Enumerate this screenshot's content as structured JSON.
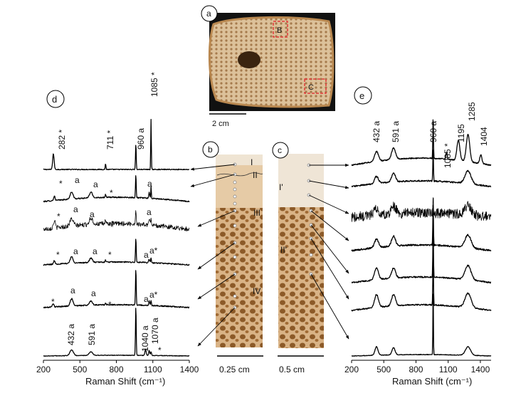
{
  "panels": {
    "a": {
      "label": "a",
      "box_labels": [
        "B",
        "C"
      ],
      "scalebar": "2 cm"
    },
    "b": {
      "label": "b",
      "regions": [
        "I",
        "II",
        "III",
        "IV"
      ],
      "scalebar": "0.25 cm"
    },
    "c": {
      "label": "c",
      "regions": [
        "I'",
        "II'"
      ],
      "scalebar": "0.5 cm"
    },
    "d": {
      "label": "d"
    },
    "e": {
      "label": "e"
    }
  },
  "colors": {
    "photo_box": "#e23b3b",
    "bone_light": "#d8b48a",
    "bone_dark": "#8a5a2b",
    "background_dark": "#111111"
  },
  "chart_data": [
    {
      "type": "line",
      "panel": "d",
      "xlabel": "Raman Shift (cm⁻¹)",
      "xlim": [
        200,
        1400
      ],
      "xticks": [
        200,
        500,
        800,
        1100,
        1400
      ],
      "series": [
        {
          "peaks": [
            282,
            711,
            960,
            1085
          ]
        },
        {
          "peaks": [
            290,
            432,
            591,
            711,
            960,
            1070,
            1085
          ]
        },
        {
          "peaks": [
            290,
            432,
            591,
            711,
            960,
            1070,
            1085
          ]
        },
        {
          "peaks": [
            290,
            432,
            591,
            711,
            960,
            1070,
            1085
          ]
        },
        {
          "peaks": [
            280,
            432,
            591,
            711,
            960,
            1070,
            1085
          ]
        },
        {
          "peaks": [
            432,
            591,
            960,
            1040,
            1070,
            1085
          ]
        }
      ],
      "annotations": [
        "282 *",
        "711 *",
        "960 a",
        "1085 *",
        "432 a",
        "591 a",
        "1040 a",
        "1070 a",
        "a",
        "*",
        "a*"
      ]
    },
    {
      "type": "line",
      "panel": "e",
      "xlabel": "Raman Shift (cm⁻¹)",
      "xlim": [
        200,
        1500
      ],
      "xticks": [
        200,
        500,
        800,
        1100,
        1400
      ],
      "series": [
        {
          "peaks": [
            432,
            591,
            960,
            1085,
            1195,
            1285,
            1404
          ]
        },
        {
          "peaks": [
            432,
            591,
            960,
            1285
          ]
        },
        {
          "peaks": [
            432,
            591,
            960,
            1285
          ]
        },
        {
          "peaks": [
            432,
            591,
            960,
            1285
          ]
        },
        {
          "peaks": [
            432,
            591,
            960,
            1285
          ]
        },
        {
          "peaks": [
            432,
            591,
            960,
            1285
          ]
        },
        {
          "peaks": [
            432,
            591,
            960,
            1285
          ]
        }
      ],
      "annotations": [
        "432 a",
        "591 a",
        "960 a",
        "1085 *",
        "1195",
        "1285",
        "1404"
      ]
    }
  ]
}
